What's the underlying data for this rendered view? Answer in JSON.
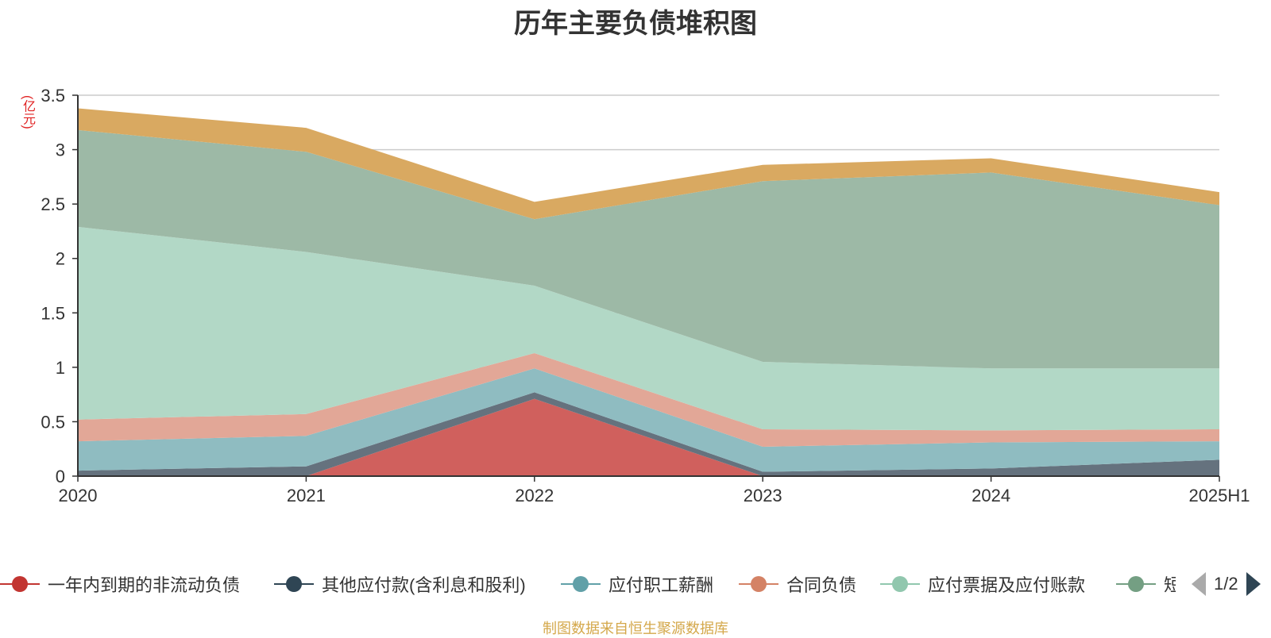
{
  "chart_data": {
    "type": "area",
    "stacked": true,
    "title": "历年主要负债堆积图",
    "unit_label": "(亿元)",
    "categories": [
      "2020",
      "2021",
      "2022",
      "2023",
      "2024",
      "2025H1"
    ],
    "ylim": [
      0,
      3.5
    ],
    "yticks": [
      "0",
      "0.5",
      "1",
      "1.5",
      "2",
      "2.5",
      "3",
      "3.5"
    ],
    "grid": true,
    "legend_position": "bottom",
    "series": [
      {
        "name": "一年内到期的非流动负债",
        "color": "#d0605d",
        "legend_color": "#c23531",
        "values": [
          0,
          0,
          0.71,
          0,
          0,
          0
        ]
      },
      {
        "name": "其他应付款(含利息和股利)",
        "color": "#65727e",
        "legend_color": "#2f4554",
        "values": [
          0.05,
          0.09,
          0.06,
          0.04,
          0.07,
          0.15
        ]
      },
      {
        "name": "应付职工薪酬",
        "color": "#8fbcc1",
        "legend_color": "#61a0a8",
        "values": [
          0.27,
          0.28,
          0.22,
          0.23,
          0.24,
          0.17
        ]
      },
      {
        "name": "合同负债",
        "color": "#e2a797",
        "legend_color": "#d48265",
        "values": [
          0.2,
          0.2,
          0.14,
          0.16,
          0.11,
          0.11
        ]
      },
      {
        "name": "应付票据及应付账款",
        "color": "#b2d8c6",
        "legend_color": "#91c7ae",
        "values": [
          1.77,
          1.49,
          0.62,
          0.62,
          0.57,
          0.56
        ]
      },
      {
        "name": "短期借款",
        "color": "#9db9a6",
        "legend_color": "#749f83",
        "values": [
          0.89,
          0.92,
          0.61,
          1.66,
          1.8,
          1.5
        ]
      },
      {
        "name": "",
        "color": "#d9a961",
        "values": [
          0.2,
          0.22,
          0.16,
          0.15,
          0.13,
          0.12
        ]
      }
    ],
    "legend_page": "1/2",
    "source_note": "制图数据来自恒生聚源数据库"
  }
}
